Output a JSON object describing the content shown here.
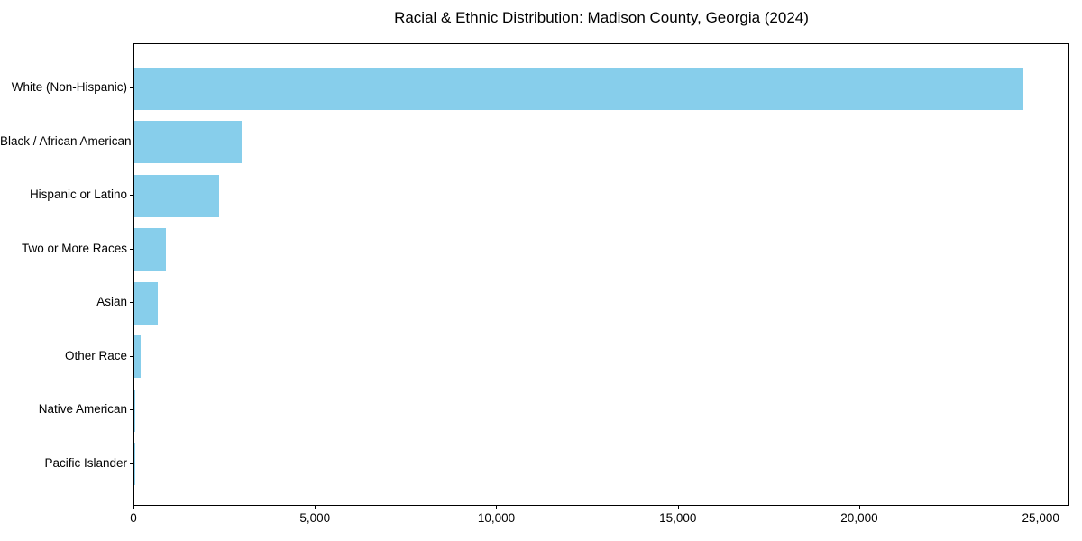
{
  "chart_data": {
    "type": "bar",
    "orientation": "horizontal",
    "title": "Racial & Ethnic Distribution: Madison County, Georgia (2024)",
    "categories": [
      "White (Non-Hispanic)",
      "Black / African American",
      "Hispanic or Latino",
      "Two or More Races",
      "Asian",
      "Other Race",
      "Native American",
      "Pacific Islander"
    ],
    "values": [
      24550,
      2950,
      2330,
      860,
      650,
      175,
      20,
      5
    ],
    "xlabel": "",
    "ylabel": "",
    "xlim": [
      0,
      25790
    ],
    "xticks": {
      "values": [
        0,
        5000,
        10000,
        15000,
        20000,
        25000
      ],
      "labels": [
        "0",
        "5,000",
        "10,000",
        "15,000",
        "20,000",
        "25,000"
      ]
    },
    "bar_color": "#87CEEB",
    "axis_color": "#000000",
    "grid": false,
    "legend": "none"
  }
}
